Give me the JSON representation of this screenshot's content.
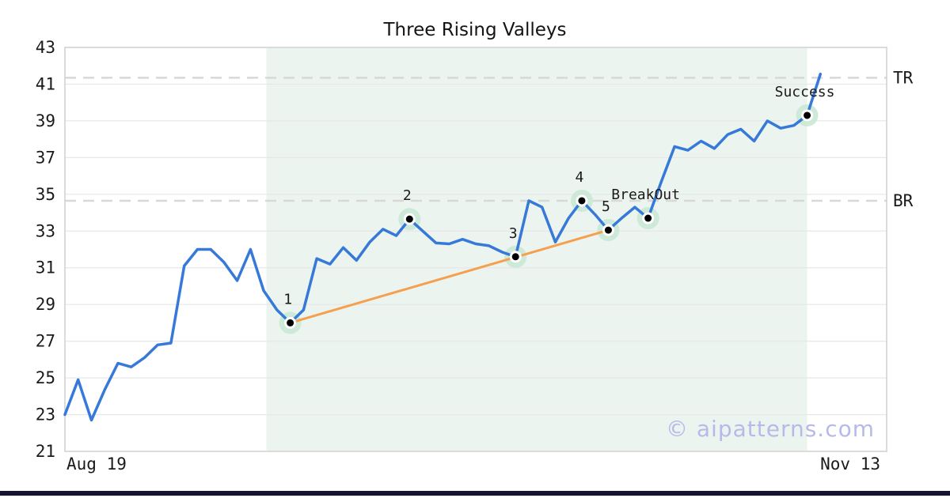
{
  "watermark": "© aipatterns.com",
  "chart_data": {
    "type": "line",
    "title": "Three Rising Valleys",
    "xlabel": "",
    "ylabel": "",
    "x_first_label": "Aug 19",
    "x_last_label": "Nov 13",
    "x_axis_slots": 62,
    "ylim": [
      21,
      43
    ],
    "y_ticks": [
      43,
      41,
      39,
      37,
      35,
      33,
      31,
      29,
      27,
      25,
      23,
      21
    ],
    "grid": "horizontal",
    "legend": "none",
    "series": [
      {
        "name": "price",
        "values": [
          23.0,
          24.9,
          22.7,
          24.35,
          25.8,
          25.6,
          26.1,
          26.8,
          26.9,
          31.1,
          32.0,
          32.0,
          31.3,
          30.3,
          32.0,
          29.75,
          28.7,
          28.0,
          28.7,
          31.5,
          31.2,
          32.1,
          31.4,
          32.4,
          33.1,
          32.75,
          33.65,
          33.0,
          32.35,
          32.3,
          32.55,
          32.3,
          32.2,
          31.85,
          31.6,
          34.65,
          34.3,
          32.4,
          33.7,
          34.65,
          33.9,
          33.05,
          33.7,
          34.3,
          33.7,
          35.7,
          37.6,
          37.4,
          37.9,
          37.5,
          38.25,
          38.55,
          37.9,
          39.0,
          38.6,
          38.75,
          39.3,
          41.55
        ]
      }
    ],
    "levels": [
      {
        "label": "TR",
        "value": 41.35
      },
      {
        "label": "BR",
        "value": 34.65
      }
    ],
    "trendline": {
      "from_index": 17,
      "from_value": 28.0,
      "to_index": 41,
      "to_value": 33.05
    },
    "highlight_region": {
      "from_index": 15.2,
      "to_index": 56
    },
    "annotations": [
      {
        "label": "1",
        "index": 17,
        "value": 28.0
      },
      {
        "label": "2",
        "index": 26,
        "value": 33.65
      },
      {
        "label": "3",
        "index": 34,
        "value": 31.6
      },
      {
        "label": "4",
        "index": 39,
        "value": 34.65
      },
      {
        "label": "5",
        "index": 41,
        "value": 33.05
      },
      {
        "label": "BreakOut",
        "index": 44,
        "value": 33.7
      },
      {
        "label": "Success",
        "index": 56,
        "value": 39.3
      }
    ],
    "colors": {
      "line": "#3679d8",
      "trendline": "#f5a04e",
      "highlight_region": "#ecf4ef",
      "marker_halo": "#c8e6d4",
      "marker_dot": "#000000",
      "marker_ring": "#ffffff",
      "gridline": "#e7e7e7",
      "level_dash": "#d8d8d8",
      "spine": "#cfcfcf",
      "text": "#1a1a1a",
      "watermark": "#b7bae8",
      "bottom_bar": "#141432"
    }
  }
}
